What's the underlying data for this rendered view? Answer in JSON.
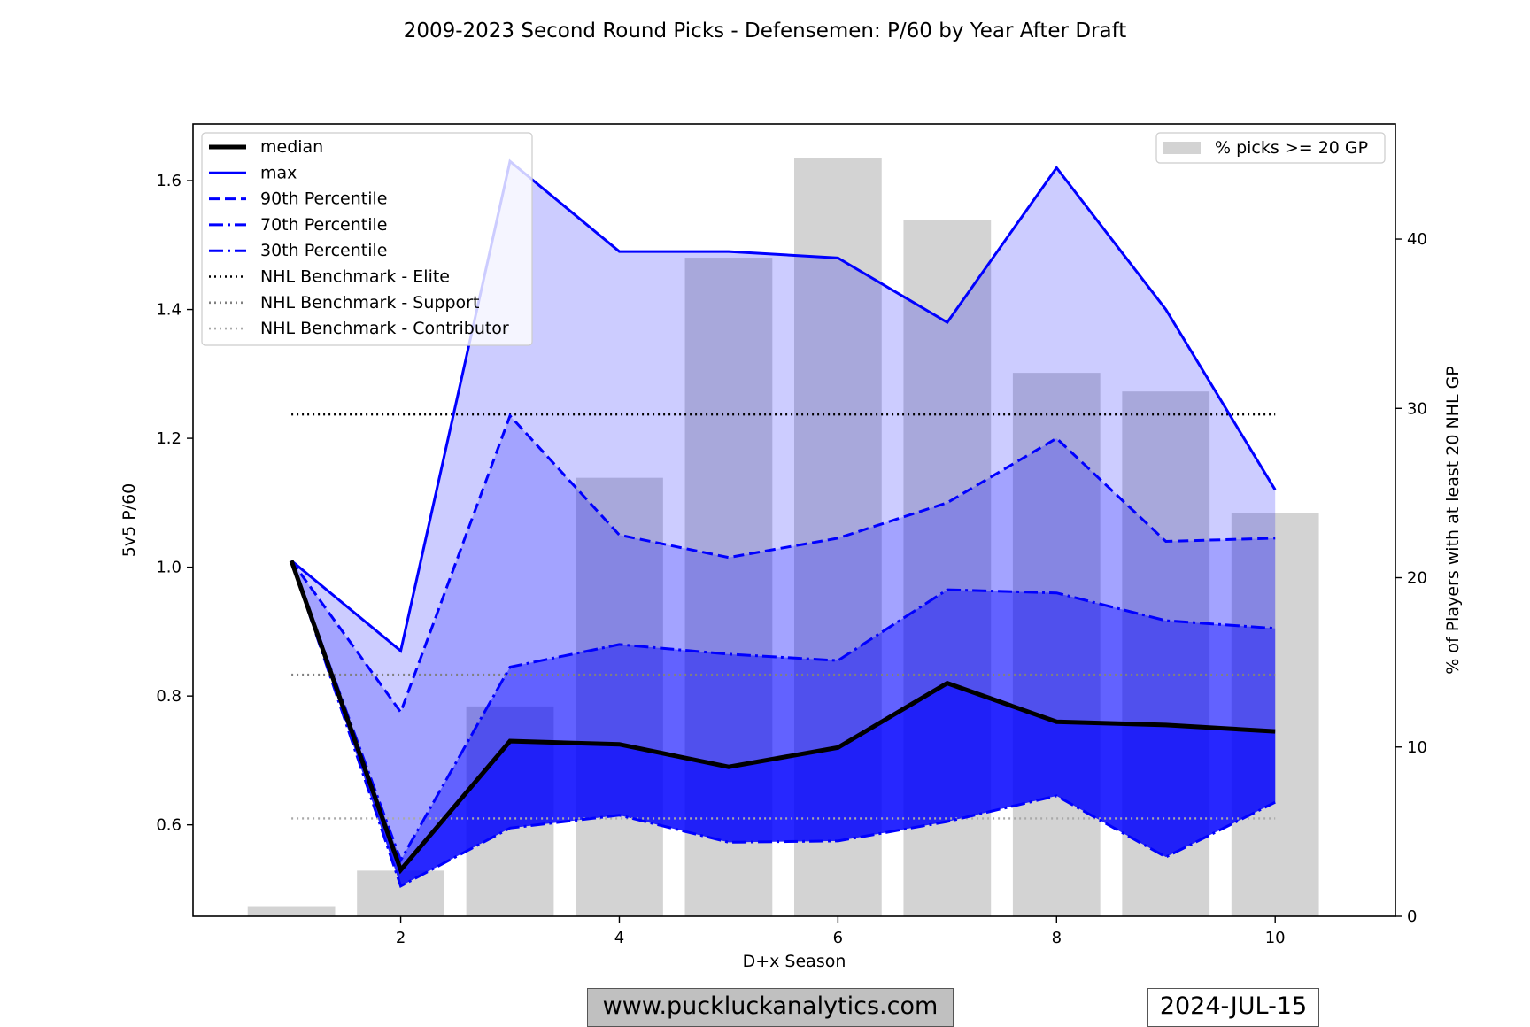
{
  "chart_data": {
    "type": "line",
    "title": "2009-2023 Second Round Picks - Defensemen: P/60 by Year After Draft",
    "xlabel": "D+x Season",
    "ylabel": "5v5 P/60",
    "y2label": "% of Players with at least 20 NHL GP",
    "x": [
      1,
      2,
      3,
      4,
      5,
      6,
      7,
      8,
      9,
      10
    ],
    "xlim": [
      0.1,
      11.1
    ],
    "ylim": [
      0.458,
      1.688
    ],
    "y2lim": [
      0,
      46.8
    ],
    "xticks": [
      "2",
      "4",
      "6",
      "8",
      "10"
    ],
    "yticks": [
      "0.6",
      "0.8",
      "1.0",
      "1.2",
      "1.4",
      "1.6"
    ],
    "y2ticks": [
      "0",
      "10",
      "20",
      "30",
      "40"
    ],
    "series": [
      {
        "name": "median",
        "color": "#000000",
        "style": "solid",
        "values": [
          1.01,
          0.53,
          0.73,
          0.725,
          0.69,
          0.72,
          0.82,
          0.76,
          0.755,
          0.745
        ]
      },
      {
        "name": "max",
        "color": "#0000ff",
        "style": "solid",
        "values": [
          1.01,
          0.87,
          1.63,
          1.49,
          1.49,
          1.48,
          1.38,
          1.62,
          1.4,
          1.12
        ]
      },
      {
        "name": "90th Percentile",
        "color": "#0000ff",
        "style": "dashed",
        "values": [
          1.01,
          0.775,
          1.235,
          1.05,
          1.015,
          1.045,
          1.1,
          1.2,
          1.04,
          1.045
        ]
      },
      {
        "name": "70th Percentile",
        "color": "#0000ff",
        "style": "dashdot",
        "values": [
          1.01,
          0.545,
          0.845,
          0.88,
          0.865,
          0.855,
          0.965,
          0.96,
          0.917,
          0.905
        ]
      },
      {
        "name": "30th Percentile",
        "color": "#0000ff",
        "style": "dashdot",
        "values": [
          1.01,
          0.505,
          0.595,
          0.615,
          0.573,
          0.575,
          0.605,
          0.645,
          0.55,
          0.635
        ]
      }
    ],
    "benchmarks": [
      {
        "name": "NHL Benchmark - Elite",
        "value": 1.237,
        "color": "#000000"
      },
      {
        "name": "NHL Benchmark - Support",
        "value": 0.833,
        "color": "#808080"
      },
      {
        "name": "NHL Benchmark - Contributor",
        "value": 0.61,
        "color": "#a9a9a9"
      }
    ],
    "bars": {
      "name": "% picks >= 20 GP",
      "color": "#d3d3d3",
      "x": [
        1,
        2,
        3,
        4,
        5,
        6,
        7,
        8,
        9,
        10
      ],
      "values": [
        0.6,
        2.7,
        12.4,
        25.9,
        38.9,
        44.8,
        41.1,
        32.1,
        31.0,
        23.8
      ]
    },
    "bands": [
      {
        "between": [
          "30th Percentile",
          "max"
        ],
        "color": "#0000ff",
        "opacity": 0.2
      },
      {
        "between": [
          "30th Percentile",
          "90th Percentile"
        ],
        "color": "#0000ff",
        "opacity": 0.2
      },
      {
        "between": [
          "30th Percentile",
          "70th Percentile"
        ],
        "color": "#0000ff",
        "opacity": 0.4
      },
      {
        "between": [
          "30th Percentile",
          "median"
        ],
        "color": "#0000ff",
        "opacity": 0.6
      }
    ],
    "legend_left_position": "upper-left",
    "legend_right_position": "upper-right",
    "grid": false
  },
  "footer": {
    "website": "www.puckluckanalytics.com",
    "date": "2024-JUL-15"
  }
}
